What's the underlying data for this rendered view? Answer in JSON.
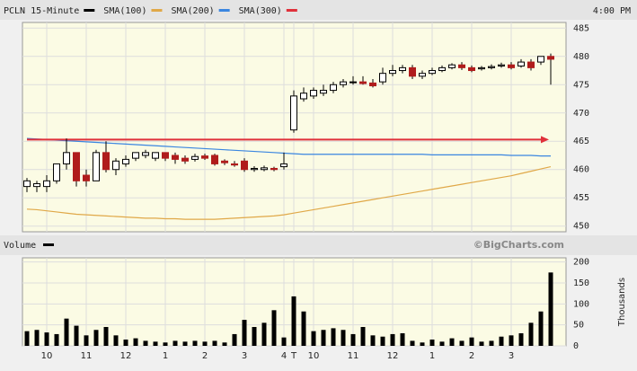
{
  "chart_data": [
    {
      "type": "candlestick",
      "name": "PCLN 15-Minute",
      "color": "#000000",
      "up_color": "#ffffff",
      "down_color": "#b01c1c",
      "time_label": "4:00 PM",
      "open": [
        457,
        457,
        457,
        458,
        461,
        463,
        459,
        458,
        463,
        460,
        461,
        462,
        462.5,
        462,
        463,
        462.5,
        462,
        461.8,
        462.4,
        462.5,
        461.5,
        461,
        461.5,
        460,
        460,
        460.2,
        460.5,
        467,
        472.5,
        473,
        473.5,
        474,
        475,
        475.5,
        475.5,
        475.3,
        475.5,
        477,
        477.5,
        478,
        476.5,
        477,
        477.5,
        478,
        478.5,
        478,
        477.8,
        478,
        478.3,
        478.5,
        478.3,
        479,
        479,
        480
      ],
      "high": [
        458.5,
        458,
        459,
        461,
        465.5,
        463,
        460,
        463.5,
        465,
        462,
        462.5,
        463,
        463.5,
        463,
        463,
        463,
        462.5,
        462.8,
        462.8,
        462.8,
        461.8,
        461.5,
        462,
        460.6,
        460.7,
        460.5,
        463,
        474,
        474.5,
        474.5,
        475,
        475.5,
        476,
        476.5,
        476.5,
        476,
        478,
        478.5,
        478.5,
        478.5,
        477.5,
        478,
        478.4,
        478.8,
        479,
        478.4,
        478.3,
        478.6,
        478.9,
        479,
        479.5,
        479.5,
        480,
        480.5
      ],
      "low": [
        456,
        456,
        456,
        457.5,
        460,
        457,
        457,
        458,
        459.5,
        459,
        460.5,
        461.5,
        462,
        461.5,
        461.5,
        461,
        461,
        461.4,
        461.7,
        460.7,
        460.8,
        460.5,
        459.6,
        459.6,
        459.7,
        459.7,
        460,
        466.5,
        472,
        472.5,
        473,
        473.5,
        474.5,
        475,
        475,
        474.5,
        475,
        476.5,
        477,
        476,
        476,
        476.7,
        477.2,
        477.7,
        477.6,
        477.2,
        477.5,
        477.7,
        478,
        477.7,
        478,
        477.5,
        478.5,
        475
      ],
      "close": [
        458,
        457.5,
        458,
        461,
        463,
        458,
        458,
        463,
        460,
        461.5,
        461.8,
        463,
        463,
        463,
        462,
        461.8,
        461.5,
        462.3,
        462,
        461,
        461.2,
        460.8,
        460,
        460.2,
        460.3,
        460,
        461,
        473,
        473.5,
        474,
        474,
        475,
        475.5,
        475.5,
        475.2,
        474.8,
        477,
        477.5,
        478,
        476.5,
        477,
        477.5,
        478,
        478.5,
        478,
        477.5,
        478,
        478.2,
        478.5,
        478,
        479,
        478,
        480,
        479.5
      ],
      "series": [
        {
          "name": "SMA(100)",
          "color": "#e0a848",
          "values": [
            453,
            452.9,
            452.7,
            452.5,
            452.3,
            452.1,
            452,
            451.9,
            451.8,
            451.7,
            451.6,
            451.5,
            451.4,
            451.4,
            451.3,
            451.3,
            451.2,
            451.2,
            451.2,
            451.2,
            451.3,
            451.4,
            451.5,
            451.6,
            451.7,
            451.8,
            452,
            452.3,
            452.6,
            452.9,
            453.2,
            453.5,
            453.8,
            454.1,
            454.4,
            454.7,
            455,
            455.3,
            455.6,
            455.9,
            456.2,
            456.5,
            456.8,
            457.1,
            457.4,
            457.7,
            458,
            458.3,
            458.6,
            458.9,
            459.3,
            459.7,
            460.1,
            460.5
          ]
        },
        {
          "name": "SMA(200)",
          "color": "#3b86e0",
          "values": [
            465.5,
            465.4,
            465.3,
            465.2,
            465.1,
            465,
            464.9,
            464.8,
            464.7,
            464.6,
            464.5,
            464.4,
            464.3,
            464.2,
            464.1,
            464,
            463.9,
            463.8,
            463.7,
            463.6,
            463.5,
            463.4,
            463.3,
            463.2,
            463.1,
            463,
            462.9,
            462.8,
            462.7,
            462.7,
            462.7,
            462.7,
            462.7,
            462.7,
            462.7,
            462.7,
            462.7,
            462.7,
            462.7,
            462.7,
            462.7,
            462.6,
            462.6,
            462.6,
            462.6,
            462.6,
            462.6,
            462.6,
            462.6,
            462.5,
            462.5,
            462.5,
            462.4,
            462.4
          ]
        },
        {
          "name": "SMA(300)",
          "color": "#e0303a",
          "values": [
            465.3,
            465.3,
            465.3,
            465.3,
            465.3,
            465.3,
            465.3,
            465.3,
            465.3,
            465.3,
            465.3,
            465.3,
            465.3,
            465.3,
            465.3,
            465.3,
            465.3,
            465.3,
            465.3,
            465.3,
            465.3,
            465.3,
            465.3,
            465.3,
            465.3,
            465.3,
            465.3,
            465.3,
            465.3,
            465.3,
            465.3,
            465.3,
            465.3,
            465.3,
            465.3,
            465.3,
            465.3,
            465.3,
            465.3,
            465.3,
            465.3,
            465.3,
            465.3,
            465.3,
            465.3,
            465.3,
            465.3,
            465.3,
            465.3,
            465.3,
            465.3,
            465.3,
            465.3,
            null
          ]
        }
      ],
      "ylim": [
        449,
        486
      ],
      "yticks": [
        450,
        455,
        460,
        465,
        470,
        475,
        480,
        485
      ],
      "grid": true
    },
    {
      "type": "bar",
      "title": "Volume",
      "color": "#000000",
      "credit": "©BigCharts.com",
      "y_axis_label": "Thousands",
      "categories": [
        null,
        null,
        "10",
        null,
        null,
        null,
        "11",
        null,
        null,
        null,
        "12",
        null,
        null,
        null,
        "1",
        null,
        null,
        null,
        "2",
        null,
        null,
        null,
        "3",
        null,
        null,
        null,
        "4",
        "T",
        null,
        "10",
        null,
        null,
        null,
        "11",
        null,
        null,
        null,
        "12",
        null,
        null,
        null,
        "1",
        null,
        null,
        null,
        "2",
        null,
        null,
        null,
        "3",
        null,
        null,
        null,
        null
      ],
      "values": [
        35,
        38,
        32,
        28,
        65,
        48,
        25,
        38,
        45,
        25,
        15,
        18,
        12,
        10,
        8,
        12,
        10,
        12,
        10,
        12,
        8,
        28,
        62,
        45,
        55,
        85,
        20,
        118,
        82,
        35,
        38,
        42,
        38,
        28,
        45,
        25,
        22,
        28,
        30,
        12,
        8,
        15,
        10,
        18,
        12,
        20,
        10,
        12,
        22,
        25,
        30,
        55,
        82,
        175
      ],
      "ylim": [
        0,
        210
      ],
      "yticks": [
        0,
        50,
        100,
        150,
        200
      ],
      "grid": true
    }
  ]
}
